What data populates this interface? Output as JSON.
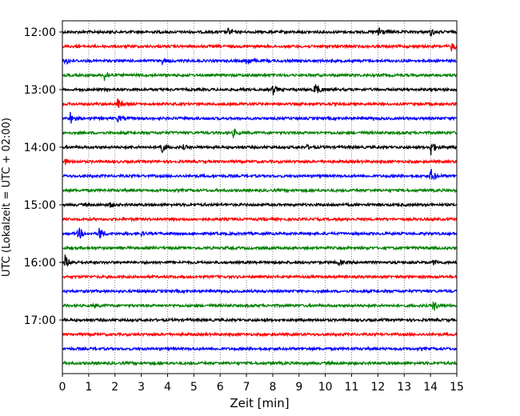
{
  "chart_data": {
    "type": "line",
    "subtype": "seismogram-helicorder",
    "xlabel": "Zeit  [min]",
    "ylabel": "UTC (Lokalzeit = UTC + 02:00)",
    "xlim": [
      0,
      15
    ],
    "x_ticks": [
      "0",
      "1",
      "2",
      "3",
      "4",
      "5",
      "6",
      "7",
      "8",
      "9",
      "10",
      "11",
      "12",
      "13",
      "14",
      "15"
    ],
    "y_tick_labels": [
      "12:00",
      "13:00",
      "14:00",
      "15:00",
      "16:00",
      "17:00"
    ],
    "grid": "vertical dotted at each minute",
    "trace_colors": [
      "#000000",
      "#ff0000",
      "#0000ff",
      "#008000"
    ],
    "traces": [
      {
        "start": "12:00",
        "events": [
          [
            6.3,
            0.35
          ],
          [
            12.0,
            1.0
          ],
          [
            14.0,
            0.4
          ]
        ]
      },
      {
        "start": "12:15",
        "events": [
          [
            14.8,
            0.5
          ]
        ]
      },
      {
        "start": "12:30",
        "events": [
          [
            0.1,
            0.5
          ],
          [
            3.8,
            0.25
          ],
          [
            7.0,
            0.6
          ]
        ]
      },
      {
        "start": "12:45",
        "events": [
          [
            1.6,
            0.6
          ]
        ]
      },
      {
        "start": "13:00",
        "events": [
          [
            8.0,
            0.6
          ],
          [
            9.6,
            1.0
          ]
        ]
      },
      {
        "start": "13:15",
        "events": [
          [
            2.1,
            0.6
          ]
        ]
      },
      {
        "start": "13:30",
        "events": [
          [
            0.3,
            0.7
          ],
          [
            2.1,
            0.4
          ]
        ]
      },
      {
        "start": "13:45",
        "events": [
          [
            6.5,
            0.4
          ]
        ]
      },
      {
        "start": "14:00",
        "events": [
          [
            3.7,
            1.0
          ],
          [
            4.6,
            0.2
          ],
          [
            9.3,
            0.2
          ],
          [
            14.0,
            1.0
          ]
        ]
      },
      {
        "start": "14:15",
        "events": [
          [
            0.1,
            0.3
          ]
        ]
      },
      {
        "start": "14:30",
        "events": [
          [
            14.0,
            0.9
          ]
        ]
      },
      {
        "start": "14:45",
        "events": []
      },
      {
        "start": "15:00",
        "events": [
          [
            1.8,
            0.3
          ]
        ]
      },
      {
        "start": "15:15",
        "events": []
      },
      {
        "start": "15:30",
        "events": [
          [
            0.6,
            0.8
          ],
          [
            1.4,
            0.8
          ],
          [
            3.0,
            0.2
          ]
        ]
      },
      {
        "start": "15:45",
        "events": []
      },
      {
        "start": "16:00",
        "events": [
          [
            0.1,
            0.8
          ],
          [
            10.5,
            0.3
          ],
          [
            14.1,
            0.3
          ]
        ]
      },
      {
        "start": "16:15",
        "events": []
      },
      {
        "start": "16:30",
        "events": []
      },
      {
        "start": "16:45",
        "events": [
          [
            1.2,
            0.2
          ],
          [
            14.1,
            0.7
          ]
        ]
      },
      {
        "start": "17:00",
        "events": []
      },
      {
        "start": "17:15",
        "events": []
      },
      {
        "start": "17:30",
        "events": []
      },
      {
        "start": "17:45",
        "events": []
      }
    ]
  }
}
